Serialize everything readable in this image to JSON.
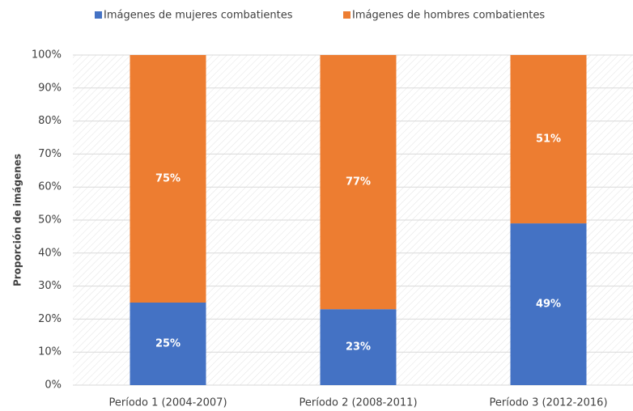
{
  "chart_data": {
    "type": "stacked_bar",
    "y_label": "Proporción de imágenes",
    "categories": [
      "Período 1 (2004-2007)",
      "Período 2 (2008-2011)",
      "Período 3 (2012-2016)"
    ],
    "series": [
      {
        "name": "Imágenes de mujeres combatientes",
        "color": "#4472c4",
        "values": [
          25,
          23,
          49
        ],
        "value_labels": [
          "25%",
          "23%",
          "49%"
        ]
      },
      {
        "name": "Imágenes de hombres combatientes",
        "color": "#ed7d31",
        "values": [
          75,
          77,
          51
        ],
        "value_labels": [
          "75%",
          "77%",
          "51%"
        ]
      }
    ],
    "ylim": [
      0,
      100
    ],
    "yticks": [
      {
        "value": 0,
        "label": "0%"
      },
      {
        "value": 10,
        "label": "10%"
      },
      {
        "value": 20,
        "label": "20%"
      },
      {
        "value": 30,
        "label": "30%"
      },
      {
        "value": 40,
        "label": "40%"
      },
      {
        "value": 50,
        "label": "50%"
      },
      {
        "value": 60,
        "label": "60%"
      },
      {
        "value": 70,
        "label": "70%"
      },
      {
        "value": 80,
        "label": "80%"
      },
      {
        "value": 90,
        "label": "90%"
      },
      {
        "value": 100,
        "label": "100%"
      }
    ],
    "grid": true
  }
}
